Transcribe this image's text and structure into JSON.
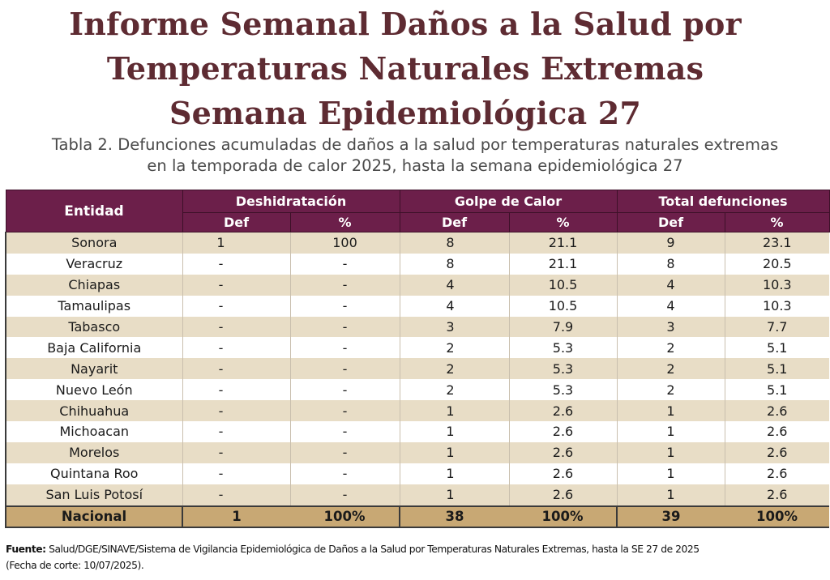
{
  "title": {
    "line1": "Informe Semanal  Daños a la Salud por",
    "line2": "Temperaturas Naturales Extremas",
    "line3": "Semana Epidemiológica 27"
  },
  "subtitle": {
    "line1": "Tabla 2.  Defunciones acumuladas de daños a la salud por temperaturas naturales extremas",
    "line2": "en la temporada de calor 2025, hasta la semana epidemiológica 27"
  },
  "table": {
    "header": {
      "entity": "Entidad",
      "group1": "Deshidratación",
      "group2": "Golpe de Calor",
      "group3": "Total defunciones",
      "def": "Def",
      "pct": "%"
    },
    "rows": [
      [
        "Sonora",
        "1",
        "100",
        "8",
        "21.1",
        "9",
        "23.1"
      ],
      [
        "Veracruz",
        "-",
        "-",
        "8",
        "21.1",
        "8",
        "20.5"
      ],
      [
        "Chiapas",
        "-",
        "-",
        "4",
        "10.5",
        "4",
        "10.3"
      ],
      [
        "Tamaulipas",
        "-",
        "-",
        "4",
        "10.5",
        "4",
        "10.3"
      ],
      [
        "Tabasco",
        "-",
        "-",
        "3",
        "7.9",
        "3",
        "7.7"
      ],
      [
        "Baja California",
        "-",
        "-",
        "2",
        "5.3",
        "2",
        "5.1"
      ],
      [
        "Nayarit",
        "-",
        "-",
        "2",
        "5.3",
        "2",
        "5.1"
      ],
      [
        "Nuevo León",
        "-",
        "-",
        "2",
        "5.3",
        "2",
        "5.1"
      ],
      [
        "Chihuahua",
        "-",
        "-",
        "1",
        "2.6",
        "1",
        "2.6"
      ],
      [
        "Michoacan",
        "-",
        "-",
        "1",
        "2.6",
        "1",
        "2.6"
      ],
      [
        "Morelos",
        "-",
        "-",
        "1",
        "2.6",
        "1",
        "2.6"
      ],
      [
        "Quintana Roo",
        "-",
        "-",
        "1",
        "2.6",
        "1",
        "2.6"
      ],
      [
        "San Luis Potosí",
        "-",
        "-",
        "1",
        "2.6",
        "1",
        "2.6"
      ]
    ],
    "total": [
      "Nacional",
      "1",
      "100%",
      "38",
      "100%",
      "39",
      "100%"
    ]
  },
  "source": {
    "label": "Fuente:",
    "text": " Salud/DGE/SINAVE/Sistema de Vigilancia Epidemiológica de Daños a la Salud por Temperaturas Naturales Extremas, hasta la SE 27 de 2025",
    "line2": "(Fecha de corte: 10/07/2025)."
  },
  "colors": {
    "title": "#5e2b32",
    "header_bg": "#6c1f4a",
    "row_alt": "#e8ddc6",
    "total_bg": "#c8a874"
  }
}
